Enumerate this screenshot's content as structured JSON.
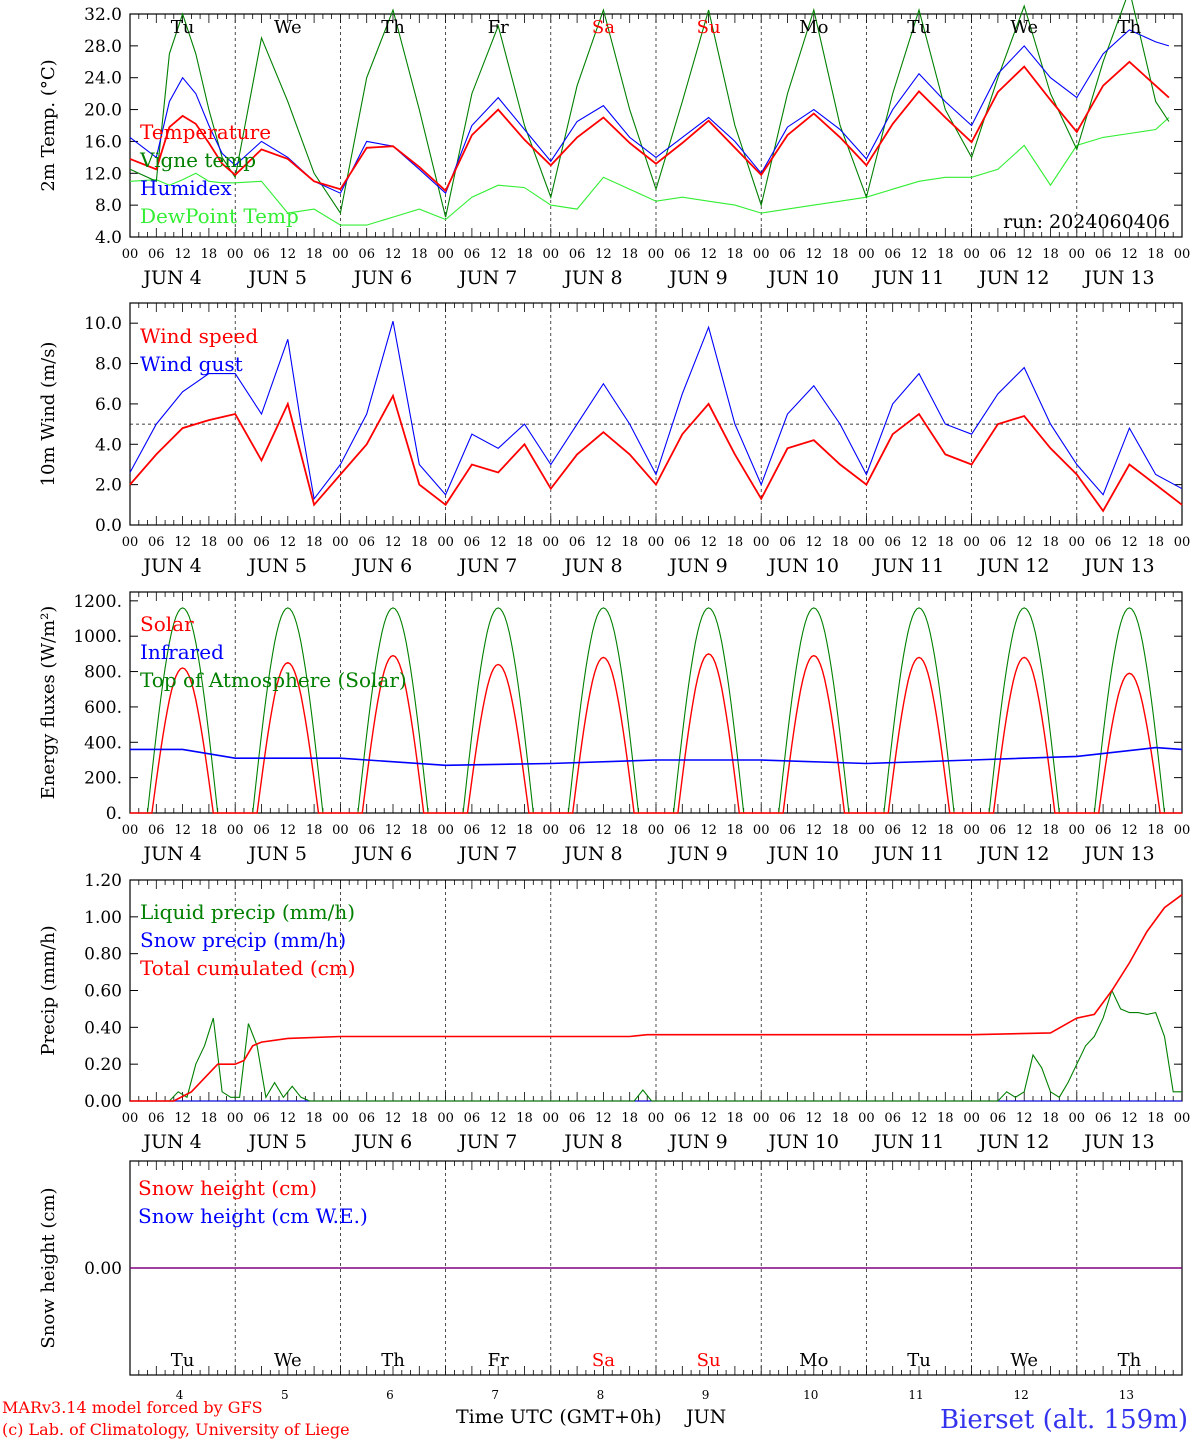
{
  "colors": {
    "red": "#ff0000",
    "green": "#008000",
    "blue": "#0000ff",
    "light_green": "#33ee33",
    "purple": "#800080",
    "black": "#000000"
  },
  "dates": {
    "hour_labels": [
      "00",
      "06",
      "12",
      "18"
    ],
    "days": [
      "JUN  4",
      "JUN  5",
      "JUN  6",
      "JUN  7",
      "JUN  8",
      "JUN  9",
      "JUN 10",
      "JUN 11",
      "JUN 12",
      "JUN 13"
    ],
    "weekdays": [
      {
        "label": "Tu",
        "weekend": false
      },
      {
        "label": "We",
        "weekend": false
      },
      {
        "label": "Th",
        "weekend": false
      },
      {
        "label": "Fr",
        "weekend": false
      },
      {
        "label": "Sa",
        "weekend": true
      },
      {
        "label": "Su",
        "weekend": true
      },
      {
        "label": "Mo",
        "weekend": false
      },
      {
        "label": "Tu",
        "weekend": false
      },
      {
        "label": "We",
        "weekend": false
      },
      {
        "label": "Th",
        "weekend": false
      }
    ],
    "day_numbers": [
      "4",
      "5",
      "6",
      "7",
      "8",
      "9",
      "10",
      "11",
      "12",
      "13"
    ]
  },
  "footer": {
    "xlabel": "Time UTC (GMT+0h)",
    "month": "JUN",
    "credit_line1": "MARv3.14 model forced by GFS",
    "credit_line2": "(c) Lab. of Climatology, University of Liege",
    "station": "Bierset (alt. 159m)"
  },
  "chart_data": [
    {
      "id": "temperature",
      "type": "line",
      "ylabel": "2m Temp. (°C)",
      "ylim": [
        4,
        32
      ],
      "yticks": [
        4,
        8,
        12,
        16,
        20,
        24,
        28,
        32
      ],
      "yticklabels": [
        "4.0",
        "8.0",
        "12.0",
        "16.0",
        "20.0",
        "24.0",
        "28.0",
        "32.0"
      ],
      "annotation": "run: 2024060406",
      "x_hours": [
        0,
        6,
        9,
        12,
        15,
        18,
        21,
        24,
        30,
        36,
        42,
        48,
        54,
        60,
        66,
        72,
        78,
        84,
        90,
        96,
        102,
        108,
        114,
        120,
        126,
        132,
        138,
        144,
        150,
        156,
        162,
        168,
        174,
        180,
        186,
        192,
        198,
        204,
        210,
        216,
        222,
        228,
        234,
        237
      ],
      "series": [
        {
          "name": "Temperature",
          "color": "#ff0000",
          "values": [
            13.8,
            12.5,
            17.8,
            19.2,
            18.2,
            15.8,
            13.2,
            11.8,
            15.0,
            13.8,
            11.0,
            10.0,
            15.2,
            15.4,
            12.8,
            9.8,
            16.8,
            20.0,
            16.2,
            13.0,
            16.5,
            19.0,
            15.8,
            13.2,
            15.8,
            18.6,
            15.2,
            11.8,
            16.8,
            19.5,
            16.5,
            13.0,
            18.2,
            22.3,
            19.0,
            15.9,
            22.2,
            25.4,
            21.2,
            17.2,
            23.0,
            26.0,
            23.0,
            21.5
          ]
        },
        {
          "name": "Vigne temp",
          "color": "#008000",
          "values": [
            12.5,
            11.0,
            27.0,
            32.0,
            27.0,
            20.0,
            14.0,
            11.5,
            29.0,
            21.0,
            12.0,
            7.0,
            24.0,
            32.5,
            20.0,
            6.5,
            22.0,
            30.5,
            18.0,
            9.0,
            23.0,
            32.5,
            20.0,
            10.0,
            21.0,
            32.5,
            18.0,
            8.0,
            22.0,
            32.5,
            18.0,
            9.0,
            22.0,
            32.5,
            20.0,
            14.0,
            24.0,
            33.0,
            22.0,
            15.0,
            26.0,
            35.0,
            21.0,
            18.5
          ]
        },
        {
          "name": "Humidex",
          "color": "#0000ff",
          "values": [
            16.5,
            14.0,
            21.0,
            24.0,
            22.0,
            18.0,
            14.5,
            13.0,
            16.0,
            14.0,
            11.0,
            9.5,
            16.0,
            15.4,
            12.5,
            9.5,
            18.0,
            21.5,
            17.5,
            13.5,
            18.5,
            20.5,
            16.5,
            14.0,
            16.5,
            19.0,
            16.0,
            12.0,
            17.8,
            20.0,
            17.5,
            13.8,
            20.0,
            24.5,
            21.0,
            18.0,
            24.5,
            28.0,
            24.0,
            21.5,
            27.0,
            30.0,
            28.5,
            28.0
          ]
        },
        {
          "name": "DewPoint Temp",
          "color": "#33ee33",
          "values": [
            11.0,
            11.2,
            10.5,
            11.2,
            12.0,
            11.0,
            10.8,
            10.8,
            11.0,
            7.0,
            7.5,
            5.5,
            5.5,
            6.5,
            7.5,
            6.2,
            9.0,
            10.5,
            10.2,
            8.0,
            7.5,
            11.5,
            10.0,
            8.5,
            9.0,
            8.5,
            8.0,
            7.0,
            7.5,
            8.0,
            8.5,
            9.0,
            10.0,
            11.0,
            11.5,
            11.5,
            12.5,
            15.5,
            10.5,
            15.5,
            16.5,
            17.0,
            17.5,
            19.0
          ]
        }
      ]
    },
    {
      "id": "wind",
      "type": "line",
      "ylabel": "10m Wind (m/s)",
      "ylim": [
        0,
        11
      ],
      "yticks": [
        0,
        2,
        4,
        6,
        8,
        10
      ],
      "yticklabels": [
        "0.0",
        "2.0",
        "4.0",
        "6.0",
        "8.0",
        "10.0"
      ],
      "reference_line": 5,
      "x_hours": [
        0,
        6,
        12,
        18,
        24,
        30,
        36,
        39,
        42,
        48,
        54,
        60,
        66,
        72,
        78,
        84,
        90,
        96,
        102,
        108,
        114,
        120,
        126,
        132,
        138,
        144,
        150,
        156,
        162,
        168,
        174,
        180,
        186,
        192,
        198,
        204,
        210,
        216,
        222,
        228,
        234,
        240
      ],
      "series": [
        {
          "name": "Wind speed",
          "color": "#ff0000",
          "values": [
            2.0,
            3.5,
            4.8,
            5.2,
            5.5,
            3.2,
            6.0,
            3.5,
            1.0,
            2.5,
            4.0,
            6.4,
            2.0,
            1.0,
            3.0,
            2.6,
            4.0,
            1.8,
            3.5,
            4.6,
            3.5,
            2.0,
            4.5,
            6.0,
            3.5,
            1.3,
            3.8,
            4.2,
            3.0,
            2.0,
            4.5,
            5.5,
            3.5,
            3.0,
            5.0,
            5.4,
            3.8,
            2.5,
            0.7,
            3.0,
            2.0,
            1.0
          ]
        },
        {
          "name": "Wind gust",
          "color": "#0000ff",
          "values": [
            2.6,
            5.0,
            6.6,
            7.5,
            7.5,
            5.5,
            9.2,
            5.0,
            1.3,
            3.0,
            5.5,
            10.1,
            3.0,
            1.5,
            4.5,
            3.8,
            5.0,
            3.0,
            5.0,
            7.0,
            5.0,
            2.5,
            6.5,
            9.8,
            5.0,
            2.0,
            5.5,
            6.9,
            5.0,
            2.5,
            6.0,
            7.5,
            5.0,
            4.5,
            6.5,
            7.8,
            5.0,
            3.0,
            1.5,
            4.8,
            2.5,
            1.8
          ]
        }
      ]
    },
    {
      "id": "energy",
      "type": "line",
      "ylabel": "Energy fluxes (W/m²)",
      "ylim": [
        0,
        1250
      ],
      "yticks": [
        0,
        200,
        400,
        600,
        800,
        1000,
        1200
      ],
      "yticklabels": [
        "0.",
        "200.",
        "400.",
        "600.",
        "800.",
        "1000.",
        "1200."
      ],
      "solar_peaks": [
        820,
        850,
        890,
        840,
        880,
        900,
        890,
        880,
        880,
        790
      ],
      "toa_peak": 1160,
      "daylight_hours": [
        4,
        20
      ],
      "infrared": {
        "x_hours": [
          0,
          12,
          24,
          48,
          72,
          96,
          120,
          144,
          168,
          192,
          216,
          234,
          240
        ],
        "values": [
          360,
          360,
          310,
          310,
          270,
          280,
          300,
          300,
          280,
          300,
          320,
          370,
          360
        ]
      },
      "series": [
        {
          "name": "Solar",
          "color": "#ff0000"
        },
        {
          "name": "Infrared",
          "color": "#0000ff"
        },
        {
          "name": "Top of Atmosphere (Solar)",
          "color": "#008000"
        }
      ]
    },
    {
      "id": "precip",
      "type": "line",
      "ylabel": "Precip (mm/h)",
      "ylim": [
        0,
        1.2
      ],
      "yticks": [
        0,
        0.2,
        0.4,
        0.6,
        0.8,
        1.0,
        1.2
      ],
      "yticklabels": [
        "0.00",
        "0.20",
        "0.40",
        "0.60",
        "0.80",
        "1.00",
        "1.20"
      ],
      "series": [
        {
          "name": "Liquid precip (mm/h)",
          "color": "#008000",
          "x_hours": [
            0,
            9,
            11,
            13,
            15,
            17,
            19,
            21,
            23,
            25,
            27,
            29,
            31,
            33,
            35,
            37,
            39,
            41,
            43,
            115,
            117,
            119,
            121,
            198,
            200,
            202,
            204,
            206,
            208,
            210,
            212,
            214,
            216,
            218,
            220,
            222,
            224,
            226,
            228,
            230,
            232,
            234,
            236,
            238,
            240
          ],
          "values": [
            0,
            0,
            0.05,
            0.02,
            0.2,
            0.3,
            0.45,
            0.05,
            0.02,
            0.02,
            0.42,
            0.3,
            0.02,
            0.1,
            0.02,
            0.08,
            0.02,
            0,
            0,
            0,
            0.06,
            0,
            0,
            0,
            0.05,
            0.02,
            0.05,
            0.25,
            0.18,
            0.05,
            0.02,
            0.1,
            0.2,
            0.3,
            0.35,
            0.45,
            0.6,
            0.5,
            0.48,
            0.48,
            0.47,
            0.48,
            0.35,
            0.05,
            0.05
          ]
        },
        {
          "name": "Snow precip (mm/h)",
          "color": "#0000ff",
          "x_hours": [
            0,
            240
          ],
          "values": [
            0,
            0
          ]
        },
        {
          "name": "Total cumulated (cm)",
          "color": "#ff0000",
          "x_hours": [
            0,
            10,
            14,
            18,
            20,
            24,
            26,
            28,
            30,
            36,
            48,
            72,
            96,
            114,
            118,
            144,
            168,
            192,
            210,
            216,
            220,
            224,
            228,
            232,
            236,
            240
          ],
          "values": [
            0,
            0,
            0.05,
            0.15,
            0.2,
            0.2,
            0.22,
            0.3,
            0.32,
            0.34,
            0.35,
            0.35,
            0.35,
            0.35,
            0.36,
            0.36,
            0.36,
            0.36,
            0.37,
            0.45,
            0.47,
            0.6,
            0.75,
            0.92,
            1.05,
            1.12
          ]
        }
      ]
    },
    {
      "id": "snow",
      "type": "line",
      "ylabel": "Snow height (cm)",
      "ylim": [
        -1,
        1
      ],
      "yticks": [
        0
      ],
      "yticklabels": [
        "0.00"
      ],
      "series": [
        {
          "name": "Snow height (cm)",
          "color": "#ff0000",
          "x_hours": [
            0,
            240
          ],
          "values": [
            0,
            0
          ]
        },
        {
          "name": "Snow height (cm W.E.)",
          "color": "#0000ff",
          "x_hours": [
            0,
            240
          ],
          "values": [
            0,
            0
          ]
        }
      ]
    }
  ]
}
